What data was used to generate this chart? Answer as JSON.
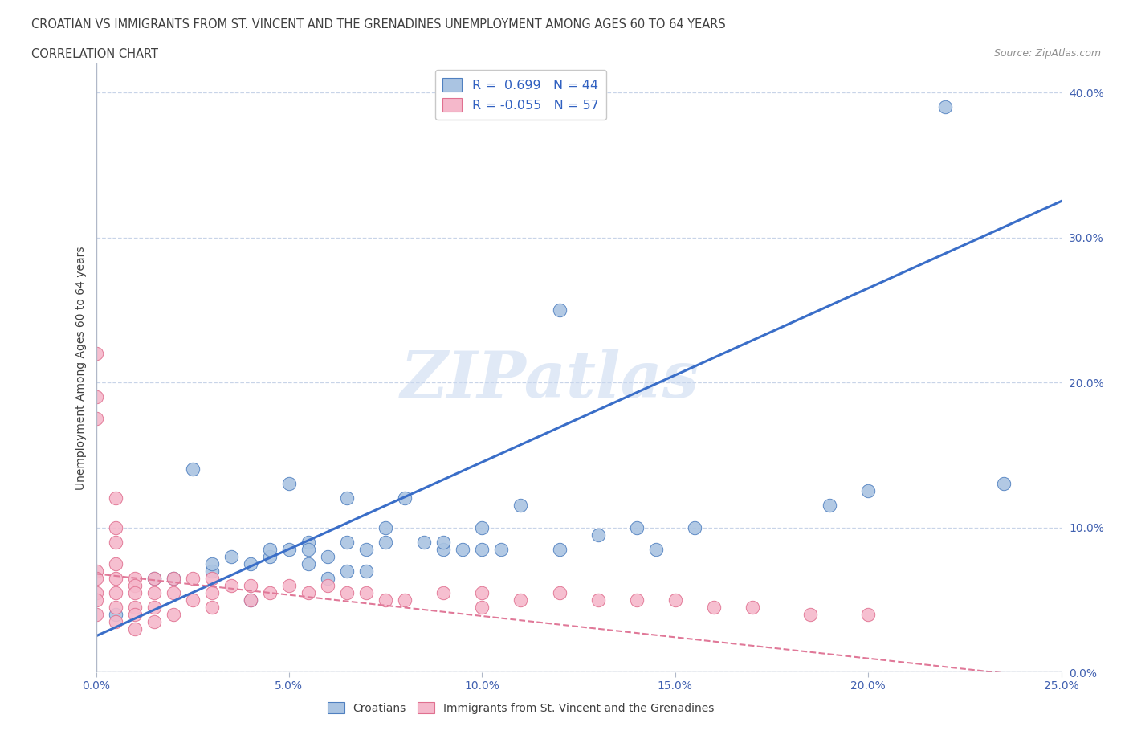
{
  "title": "CROATIAN VS IMMIGRANTS FROM ST. VINCENT AND THE GRENADINES UNEMPLOYMENT AMONG AGES 60 TO 64 YEARS",
  "subtitle": "CORRELATION CHART",
  "source": "Source: ZipAtlas.com",
  "ylabel": "Unemployment Among Ages 60 to 64 years",
  "xlim": [
    0.0,
    0.25
  ],
  "ylim": [
    0.0,
    0.42
  ],
  "xticks": [
    0.0,
    0.05,
    0.1,
    0.15,
    0.2,
    0.25
  ],
  "yticks_right": [
    0.0,
    0.1,
    0.2,
    0.3,
    0.4
  ],
  "blue_R": 0.699,
  "blue_N": 44,
  "pink_R": -0.055,
  "pink_N": 57,
  "blue_color": "#aac4e2",
  "pink_color": "#f5b8cb",
  "blue_edge_color": "#5080c0",
  "pink_edge_color": "#e07090",
  "blue_line_color": "#3a6ec8",
  "pink_line_color": "#e07898",
  "grid_color": "#c8d4e8",
  "watermark": "ZIPatlas",
  "watermark_color": "#c8d8f0",
  "blue_line_x0": 0.0,
  "blue_line_y0": 0.025,
  "blue_line_x1": 0.25,
  "blue_line_y1": 0.325,
  "pink_line_x0": 0.0,
  "pink_line_y0": 0.068,
  "pink_line_x1": 0.25,
  "pink_line_y1": -0.005,
  "blue_points_x": [
    0.005,
    0.015,
    0.02,
    0.025,
    0.03,
    0.03,
    0.035,
    0.04,
    0.04,
    0.045,
    0.045,
    0.05,
    0.05,
    0.055,
    0.055,
    0.055,
    0.06,
    0.06,
    0.065,
    0.065,
    0.065,
    0.07,
    0.07,
    0.075,
    0.075,
    0.08,
    0.085,
    0.09,
    0.09,
    0.095,
    0.1,
    0.1,
    0.105,
    0.11,
    0.12,
    0.12,
    0.13,
    0.14,
    0.145,
    0.155,
    0.19,
    0.2,
    0.22,
    0.235
  ],
  "blue_points_y": [
    0.04,
    0.065,
    0.065,
    0.14,
    0.07,
    0.075,
    0.08,
    0.075,
    0.05,
    0.08,
    0.085,
    0.085,
    0.13,
    0.09,
    0.085,
    0.075,
    0.08,
    0.065,
    0.09,
    0.07,
    0.12,
    0.085,
    0.07,
    0.1,
    0.09,
    0.12,
    0.09,
    0.085,
    0.09,
    0.085,
    0.1,
    0.085,
    0.085,
    0.115,
    0.085,
    0.25,
    0.095,
    0.1,
    0.085,
    0.1,
    0.115,
    0.125,
    0.39,
    0.13
  ],
  "pink_points_x": [
    0.0,
    0.0,
    0.0,
    0.0,
    0.0,
    0.0,
    0.0,
    0.0,
    0.005,
    0.005,
    0.005,
    0.005,
    0.005,
    0.005,
    0.005,
    0.005,
    0.01,
    0.01,
    0.01,
    0.01,
    0.01,
    0.01,
    0.015,
    0.015,
    0.015,
    0.015,
    0.02,
    0.02,
    0.02,
    0.025,
    0.025,
    0.03,
    0.03,
    0.03,
    0.035,
    0.04,
    0.04,
    0.045,
    0.05,
    0.055,
    0.06,
    0.065,
    0.07,
    0.075,
    0.08,
    0.09,
    0.1,
    0.1,
    0.11,
    0.12,
    0.13,
    0.14,
    0.15,
    0.16,
    0.17,
    0.185,
    0.2
  ],
  "pink_points_y": [
    0.22,
    0.19,
    0.175,
    0.07,
    0.065,
    0.055,
    0.05,
    0.04,
    0.12,
    0.1,
    0.09,
    0.075,
    0.065,
    0.055,
    0.045,
    0.035,
    0.065,
    0.06,
    0.055,
    0.045,
    0.04,
    0.03,
    0.065,
    0.055,
    0.045,
    0.035,
    0.065,
    0.055,
    0.04,
    0.065,
    0.05,
    0.065,
    0.055,
    0.045,
    0.06,
    0.06,
    0.05,
    0.055,
    0.06,
    0.055,
    0.06,
    0.055,
    0.055,
    0.05,
    0.05,
    0.055,
    0.055,
    0.045,
    0.05,
    0.055,
    0.05,
    0.05,
    0.05,
    0.045,
    0.045,
    0.04,
    0.04
  ]
}
